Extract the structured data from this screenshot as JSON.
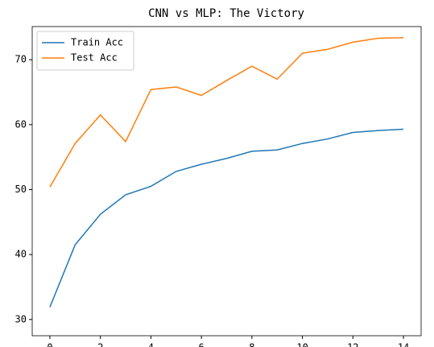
{
  "chart_data": {
    "type": "line",
    "title": "CNN vs MLP: The Victory",
    "x": [
      0,
      1,
      2,
      3,
      4,
      5,
      6,
      7,
      8,
      9,
      10,
      11,
      12,
      13,
      14
    ],
    "series": [
      {
        "name": "Train Acc",
        "color": "#1f77b4",
        "values": [
          31.9,
          41.5,
          46.2,
          49.2,
          50.5,
          52.8,
          53.9,
          54.8,
          55.9,
          56.1,
          57.1,
          57.8,
          58.8,
          59.1,
          59.3
        ]
      },
      {
        "name": "Test Acc",
        "color": "#ff7f0e",
        "values": [
          50.4,
          57.1,
          61.5,
          57.4,
          65.4,
          65.8,
          64.5,
          66.8,
          69.0,
          67.0,
          71.0,
          71.6,
          72.7,
          73.3,
          73.4
        ]
      }
    ],
    "xlim": [
      -0.7,
      14.7
    ],
    "xticks": [
      0,
      2,
      4,
      6,
      8,
      10,
      12,
      14
    ],
    "ylim": [
      27.5,
      75.1
    ],
    "yticks": [
      30,
      40,
      50,
      60,
      70
    ],
    "legend": "upper left"
  }
}
